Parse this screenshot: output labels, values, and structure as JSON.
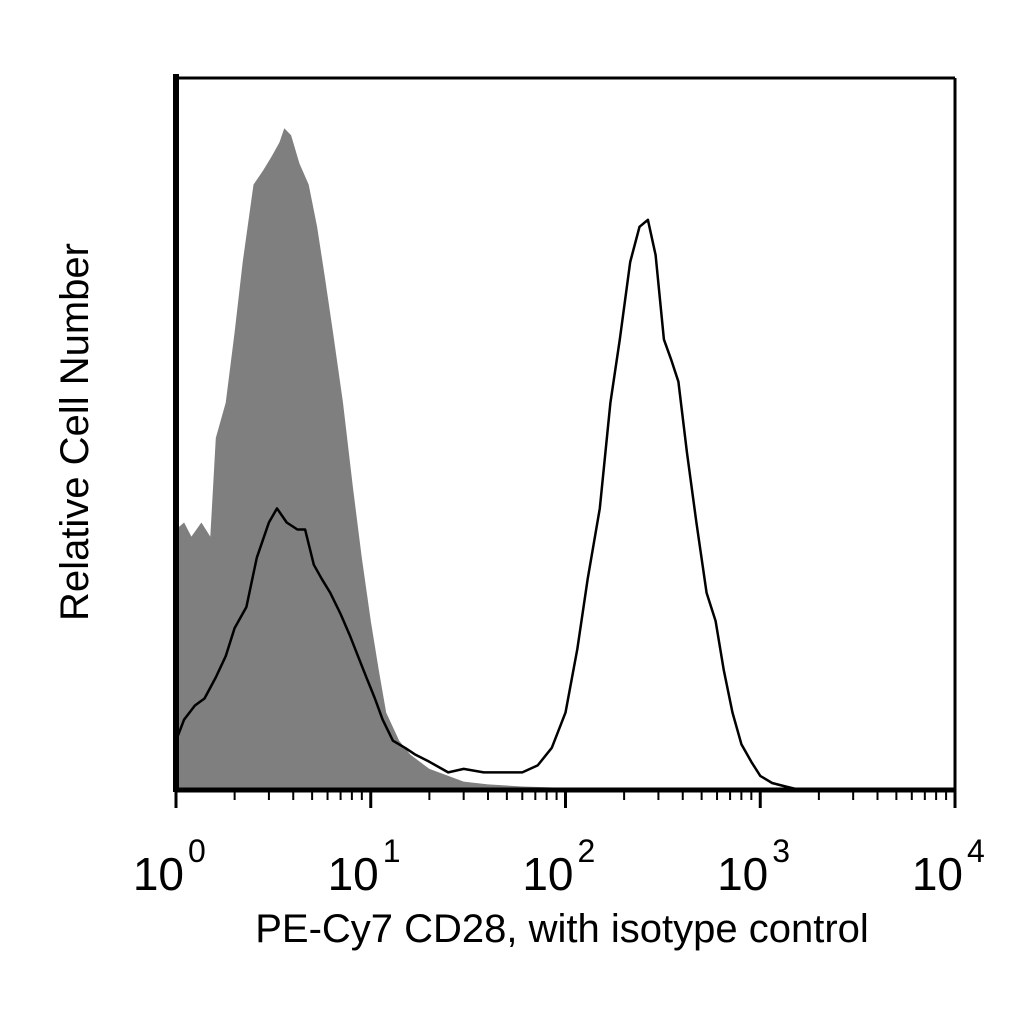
{
  "chart_data": {
    "type": "area",
    "title": "",
    "xlabel": "PE-Cy7 CD28, with isotype control",
    "ylabel": "Relative Cell Number",
    "x_scale": "log",
    "xlim": [
      1,
      10000
    ],
    "ylim": [
      0,
      1
    ],
    "grid": false,
    "legend": "none",
    "x_ticks": [
      {
        "base": "10",
        "exp": "0",
        "value": 1
      },
      {
        "base": "10",
        "exp": "1",
        "value": 10
      },
      {
        "base": "10",
        "exp": "2",
        "value": 100
      },
      {
        "base": "10",
        "exp": "3",
        "value": 1000
      },
      {
        "base": "10",
        "exp": "4",
        "value": 10000
      }
    ],
    "series": [
      {
        "style": "filled",
        "color": "#7f7f7f",
        "points": [
          [
            1.0,
            0.37
          ],
          [
            1.1,
            0.38
          ],
          [
            1.2,
            0.36
          ],
          [
            1.35,
            0.38
          ],
          [
            1.5,
            0.36
          ],
          [
            1.6,
            0.5
          ],
          [
            1.8,
            0.55
          ],
          [
            2.0,
            0.65
          ],
          [
            2.2,
            0.75
          ],
          [
            2.5,
            0.86
          ],
          [
            2.8,
            0.88
          ],
          [
            3.1,
            0.9
          ],
          [
            3.4,
            0.92
          ],
          [
            3.6,
            0.94
          ],
          [
            3.9,
            0.93
          ],
          [
            4.3,
            0.89
          ],
          [
            4.8,
            0.86
          ],
          [
            5.3,
            0.8
          ],
          [
            5.8,
            0.73
          ],
          [
            6.4,
            0.65
          ],
          [
            7.2,
            0.55
          ],
          [
            8.1,
            0.43
          ],
          [
            9.0,
            0.33
          ],
          [
            10.0,
            0.24
          ],
          [
            11.0,
            0.17
          ],
          [
            12.0,
            0.11
          ],
          [
            14.0,
            0.07
          ],
          [
            16.0,
            0.05
          ],
          [
            20.0,
            0.03
          ],
          [
            25.0,
            0.02
          ],
          [
            30.0,
            0.012
          ],
          [
            40.0,
            0.008
          ],
          [
            60.0,
            0.005
          ],
          [
            100.0,
            0.003
          ],
          [
            150.0,
            0.002
          ],
          [
            250.0,
            0.001
          ],
          [
            400.0,
            0.0
          ]
        ]
      },
      {
        "style": "outline",
        "color": "#000000",
        "points": [
          [
            1.0,
            0.07
          ],
          [
            1.1,
            0.1
          ],
          [
            1.25,
            0.12
          ],
          [
            1.4,
            0.13
          ],
          [
            1.6,
            0.16
          ],
          [
            1.8,
            0.19
          ],
          [
            2.0,
            0.23
          ],
          [
            2.3,
            0.26
          ],
          [
            2.6,
            0.33
          ],
          [
            3.0,
            0.38
          ],
          [
            3.3,
            0.4
          ],
          [
            3.7,
            0.38
          ],
          [
            4.2,
            0.37
          ],
          [
            4.6,
            0.37
          ],
          [
            5.1,
            0.32
          ],
          [
            5.6,
            0.3
          ],
          [
            6.2,
            0.28
          ],
          [
            7.0,
            0.25
          ],
          [
            7.8,
            0.22
          ],
          [
            8.6,
            0.19
          ],
          [
            9.5,
            0.16
          ],
          [
            10.5,
            0.13
          ],
          [
            11.5,
            0.1
          ],
          [
            13.0,
            0.07
          ],
          [
            15.0,
            0.06
          ],
          [
            17.0,
            0.05
          ],
          [
            20.0,
            0.04
          ],
          [
            25.0,
            0.025
          ],
          [
            30.0,
            0.03
          ],
          [
            38.0,
            0.025
          ],
          [
            48.0,
            0.025
          ],
          [
            60.0,
            0.025
          ],
          [
            72.0,
            0.035
          ],
          [
            85.0,
            0.06
          ],
          [
            100.0,
            0.11
          ],
          [
            115.0,
            0.2
          ],
          [
            130.0,
            0.3
          ],
          [
            150.0,
            0.4
          ],
          [
            170.0,
            0.55
          ],
          [
            190.0,
            0.64
          ],
          [
            215.0,
            0.75
          ],
          [
            240.0,
            0.8
          ],
          [
            265.0,
            0.81
          ],
          [
            290.0,
            0.76
          ],
          [
            320.0,
            0.64
          ],
          [
            350.0,
            0.61
          ],
          [
            380.0,
            0.58
          ],
          [
            420.0,
            0.48
          ],
          [
            470.0,
            0.38
          ],
          [
            530.0,
            0.28
          ],
          [
            590.0,
            0.24
          ],
          [
            650.0,
            0.17
          ],
          [
            720.0,
            0.11
          ],
          [
            800.0,
            0.065
          ],
          [
            900.0,
            0.04
          ],
          [
            1000.0,
            0.02
          ],
          [
            1150.0,
            0.01
          ],
          [
            1350.0,
            0.005
          ],
          [
            1600.0,
            0.0
          ]
        ]
      }
    ]
  }
}
